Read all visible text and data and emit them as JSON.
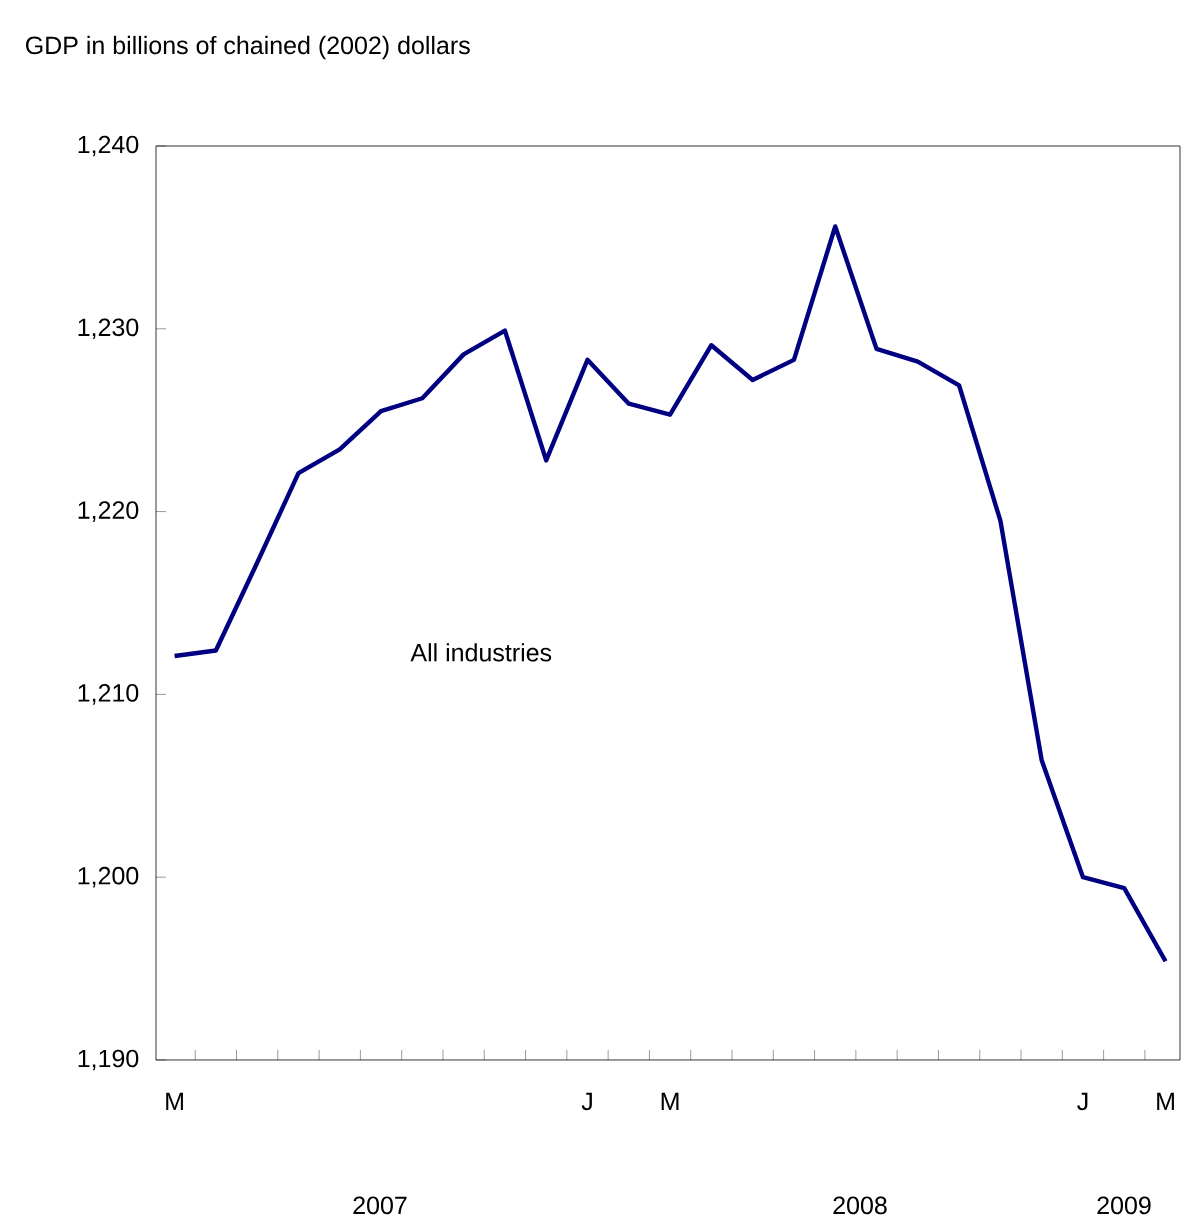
{
  "chart_data": {
    "type": "line",
    "title": "GDP in billions of chained (2002) dollars",
    "categories": [
      "M",
      null,
      null,
      null,
      null,
      null,
      null,
      null,
      null,
      null,
      "J",
      null,
      "M",
      null,
      null,
      null,
      null,
      null,
      null,
      null,
      null,
      null,
      "J",
      null,
      "M"
    ],
    "series": [
      {
        "name": "All industries",
        "color": "#000080",
        "values": [
          1212.1,
          1212.4,
          1217.2,
          1222.1,
          1223.4,
          1225.5,
          1226.2,
          1228.6,
          1229.9,
          1222.8,
          1228.3,
          1225.9,
          1225.3,
          1229.1,
          1227.2,
          1228.3,
          1235.6,
          1228.9,
          1228.2,
          1226.9,
          1219.5,
          1206.4,
          1200.0,
          1199.4,
          1195.4
        ]
      }
    ],
    "ylim": [
      1190,
      1240
    ],
    "yticks": [
      {
        "value": 1190,
        "label": "1,190"
      },
      {
        "value": 1200,
        "label": "1,200"
      },
      {
        "value": 1210,
        "label": "1,210"
      },
      {
        "value": 1220,
        "label": "1,220"
      },
      {
        "value": 1230,
        "label": "1,230"
      },
      {
        "value": 1240,
        "label": "1,240"
      }
    ],
    "annotations": [
      "2007",
      "2008",
      "2009"
    ],
    "grid": false,
    "legend": false,
    "marker": "none",
    "line_style": "solid"
  }
}
